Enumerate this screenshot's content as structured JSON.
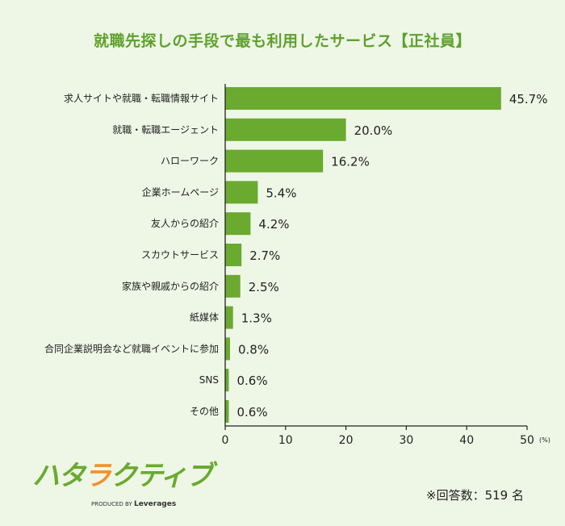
{
  "chart_data": {
    "type": "bar",
    "orientation": "horizontal",
    "title": "就職先探しの手段で最も利用したサービス【正社員】",
    "categories": [
      "求人サイトや就職・転職情報サイト",
      "就職・転職エージェント",
      "ハローワーク",
      "企業ホームページ",
      "友人からの紹介",
      "スカウトサービス",
      "家族や親戚からの紹介",
      "紙媒体",
      "合同企業説明会など就職イベントに参加",
      "SNS",
      "その他"
    ],
    "values": [
      45.7,
      20.0,
      16.2,
      5.4,
      4.2,
      2.7,
      2.5,
      1.3,
      0.8,
      0.6,
      0.6
    ],
    "value_labels": [
      "45.7%",
      "20.0%",
      "16.2%",
      "5.4%",
      "4.2%",
      "2.7%",
      "2.5%",
      "1.3%",
      "0.8%",
      "0.6%",
      "0.6%"
    ],
    "xlim": [
      0,
      50
    ],
    "xticks": [
      "0",
      "10",
      "20",
      "30",
      "40",
      "50"
    ],
    "xunit": "(%)",
    "grid": false,
    "bar_color": "#6aaa2f",
    "title_color": "#5ea12d"
  },
  "logo": {
    "text": "ハタラクティブ",
    "sub_prefix": "PRODUCED BY",
    "sub_brand": "Leverages",
    "green": "#6aaa2f",
    "orange": "#f0922b"
  },
  "note": "※回答数：519 名"
}
